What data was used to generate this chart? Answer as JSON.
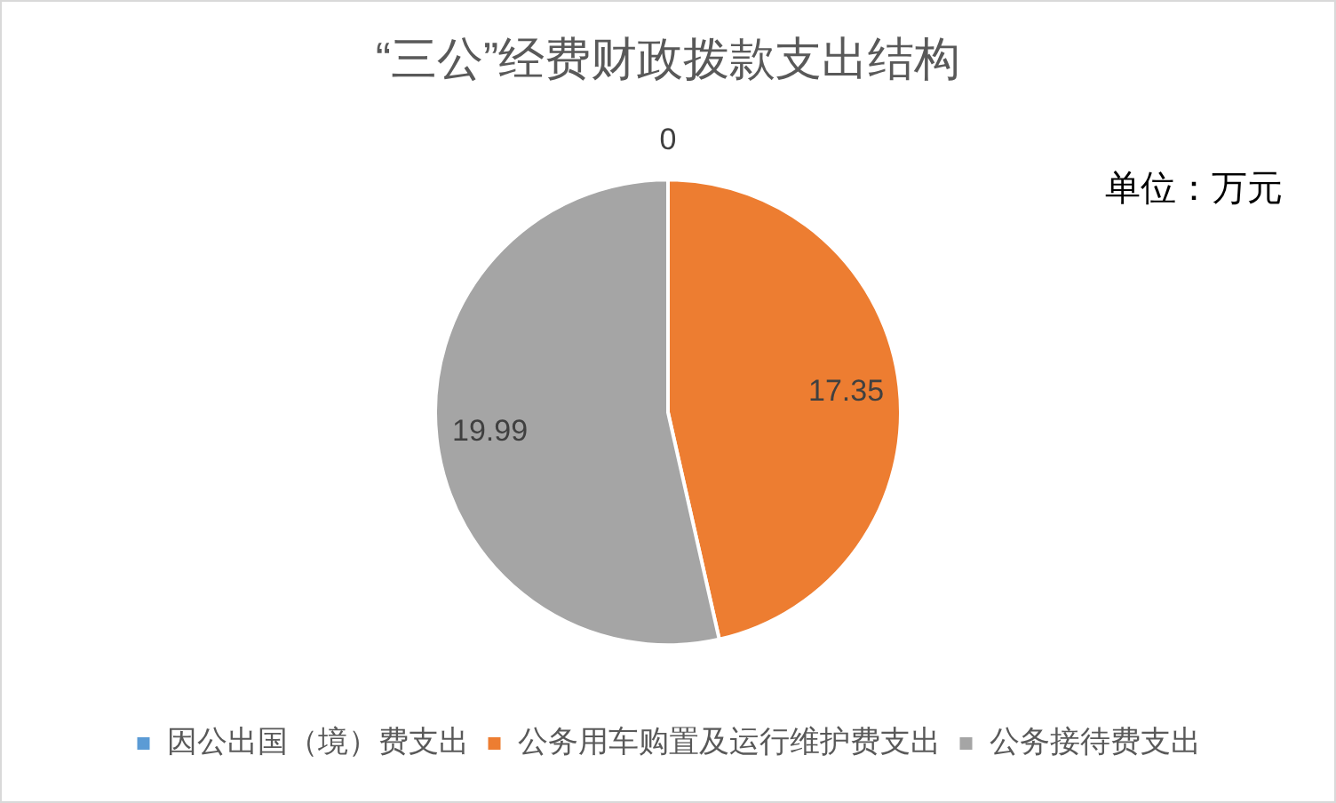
{
  "chart_data": {
    "type": "pie",
    "title": "“三公”经费财政拨款支出结构",
    "categories": [
      "因公出国（境）费支出",
      "公务用车购置及运行维护费支出",
      "公务接待费支出"
    ],
    "values": [
      0,
      17.35,
      19.99
    ],
    "colors": [
      "#5b9bd5",
      "#ed7d31",
      "#a5a5a5"
    ],
    "value_labels": [
      "0",
      "17.35",
      "19.99"
    ],
    "legend": "bottom",
    "annotations": [
      "单位：万元"
    ]
  }
}
